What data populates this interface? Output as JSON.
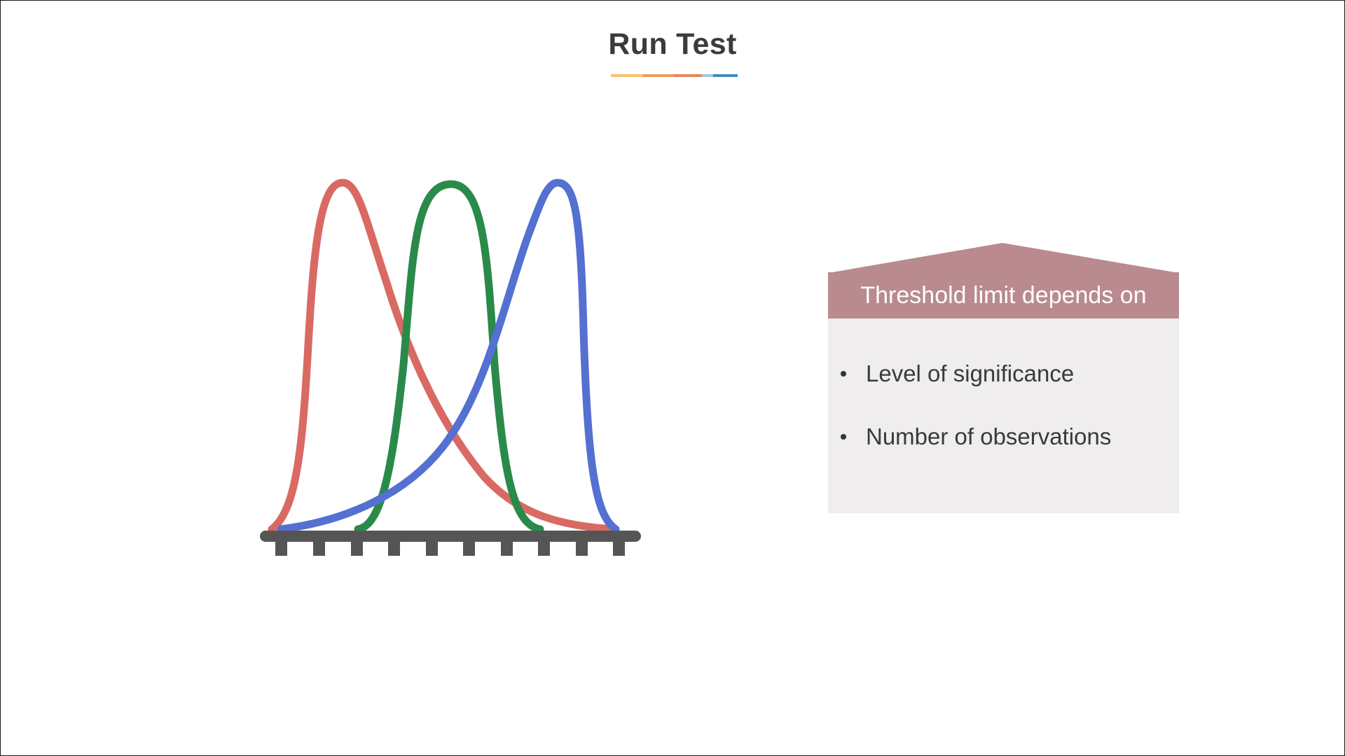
{
  "slide": {
    "title": "Run Test",
    "title_underline_colors": [
      "#f7c46c",
      "#f39a5d",
      "#e9875a",
      "#9cc9e0",
      "#3f8bbd"
    ],
    "curve_colors": {
      "red": "#d96a63",
      "green": "#2a8a4a",
      "blue": "#5470d1"
    },
    "axis_color": "#555555",
    "box": {
      "header": "Threshold limit depends on",
      "header_color": "#b98a8e",
      "body_color": "#efedee",
      "items": [
        "Level of significance",
        "Number of observations"
      ]
    }
  }
}
